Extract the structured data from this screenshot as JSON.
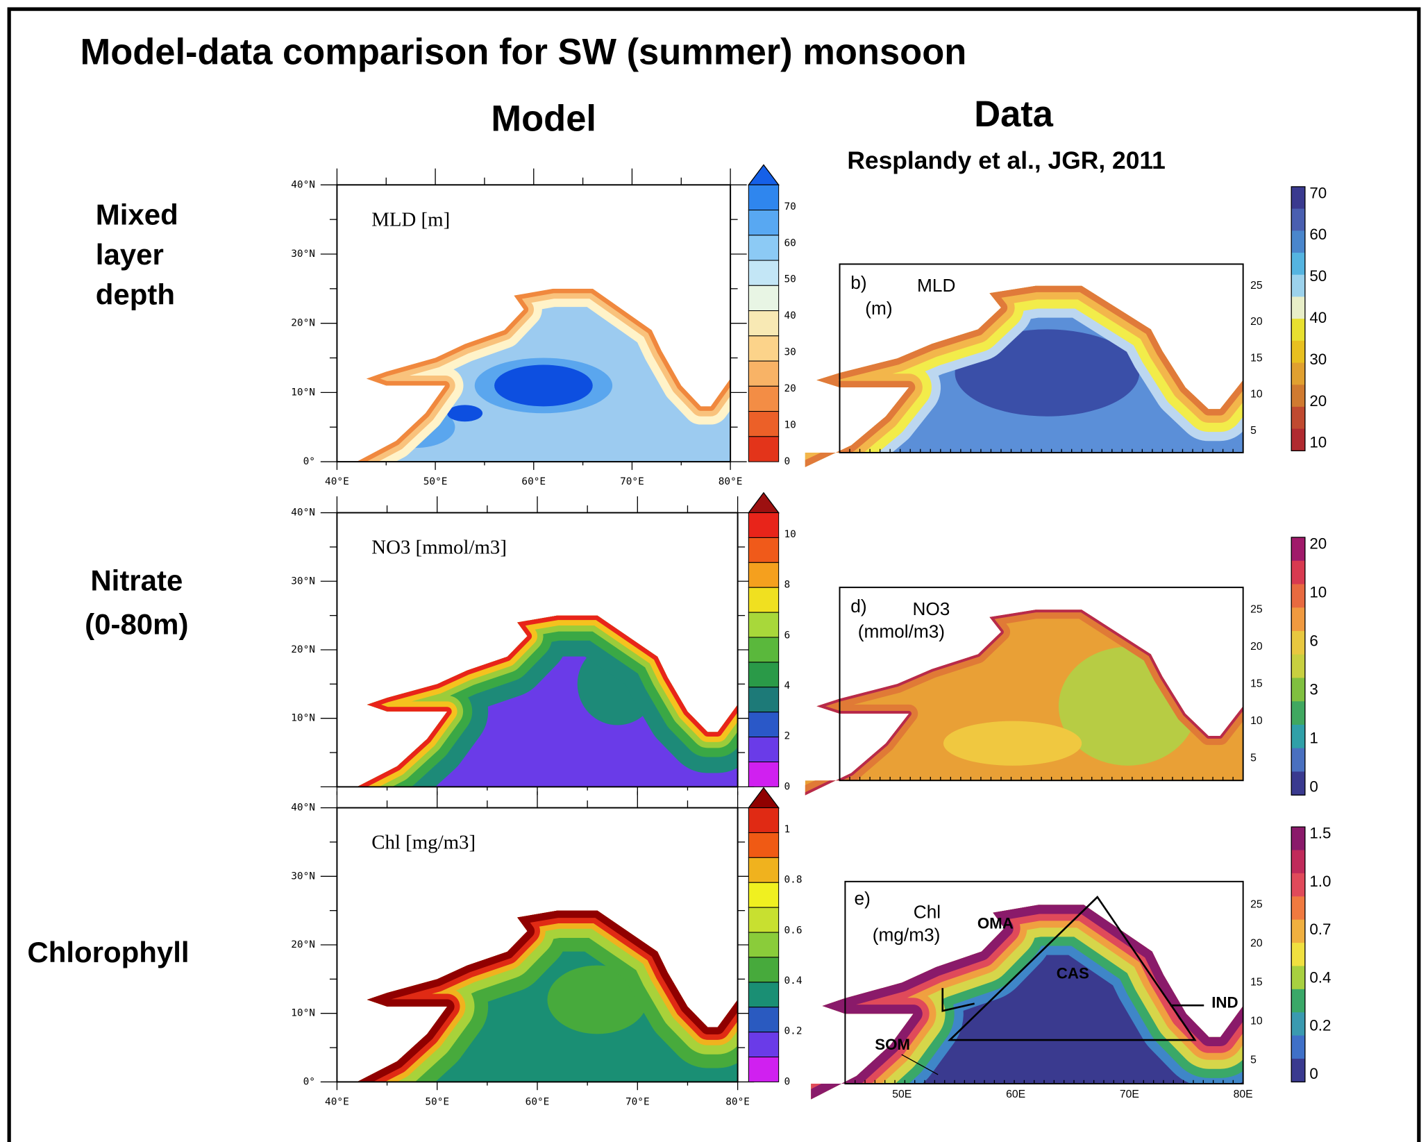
{
  "title": "Model-data comparison for SW (summer) monsoon",
  "headers": {
    "model": "Model",
    "data": "Data",
    "data_source": "Resplandy et al., JGR, 2011"
  },
  "rows": [
    {
      "label": [
        "Mixed",
        "layer",
        "depth"
      ],
      "model": {
        "title": "MLD [m]",
        "lat_ticks": [
          "40°N",
          "30°N",
          "20°N",
          "10°N",
          "0°"
        ],
        "lon_ticks": [
          "40°E",
          "50°E",
          "60°E",
          "70°E",
          "80°E"
        ],
        "colorbar": {
          "labels": [
            "70",
            "60",
            "50",
            "40",
            "30",
            "20",
            "10",
            "0"
          ],
          "colors": [
            "#1560e8",
            "#2f86ee",
            "#58a8f2",
            "#8ccaf5",
            "#c3e6f6",
            "#e8f5e4",
            "#f8e9b4",
            "#fcd38a",
            "#f8b366",
            "#f38d45",
            "#ec6028",
            "#e3341a"
          ]
        }
      },
      "data": {
        "tag": "b)",
        "name": "MLD",
        "unit": "(m)",
        "y_ticks": [
          "25",
          "20",
          "15",
          "10",
          "5"
        ],
        "colorbar": {
          "labels": [
            "70",
            "60",
            "50",
            "40",
            "30",
            "20",
            "10"
          ],
          "colors": [
            "#3a3a8f",
            "#4a5fb0",
            "#4a86cc",
            "#55b4e0",
            "#9cd2ec",
            "#e8eec8",
            "#e8e030",
            "#e8c020",
            "#e0a030",
            "#d07a30",
            "#c04a30",
            "#b02a30"
          ]
        }
      }
    },
    {
      "label": [
        "Nitrate",
        "(0-80m)"
      ],
      "model": {
        "title": "NO3 [mmol/m3]",
        "lat_ticks": [
          "40°N",
          "30°N",
          "20°N",
          "10°N"
        ],
        "colorbar": {
          "labels": [
            "10",
            "8",
            "6",
            "4",
            "2",
            "0"
          ],
          "colors": [
            "#9c1010",
            "#e8241a",
            "#f05a1a",
            "#f5a01e",
            "#f0e020",
            "#a8d83a",
            "#5ab83c",
            "#2a9a48",
            "#1d7a78",
            "#2a58c8",
            "#6a3be8",
            "#d020f0"
          ]
        }
      },
      "data": {
        "tag": "d)",
        "name": "NO3",
        "unit": "(mmol/m3)",
        "y_ticks": [
          "25",
          "20",
          "15",
          "10",
          "5"
        ],
        "colorbar": {
          "labels": [
            "20",
            "10",
            "6",
            "3",
            "1",
            "0"
          ],
          "colors": [
            "#a01a6a",
            "#d83a50",
            "#e86a40",
            "#f09a40",
            "#e8c840",
            "#c8d040",
            "#80c040",
            "#40a860",
            "#30a0a8",
            "#4a70c0",
            "#3a3a8f"
          ]
        }
      }
    },
    {
      "label": [
        "Chlorophyll"
      ],
      "model": {
        "title": "Chl [mg/m3]",
        "lat_ticks": [
          "40°N",
          "30°N",
          "20°N",
          "10°N",
          "0°"
        ],
        "lon_ticks": [
          "40°E",
          "50°E",
          "60°E",
          "70°E",
          "80°E"
        ],
        "colorbar": {
          "labels": [
            "1",
            "0.8",
            "0.6",
            "0.4",
            "0.2",
            "0"
          ],
          "colors": [
            "#900000",
            "#e02a14",
            "#f05a14",
            "#f0b21e",
            "#f0f020",
            "#c8e030",
            "#8acc3a",
            "#47aa3c",
            "#1a8f74",
            "#2a5ac0",
            "#6a3be8",
            "#d020f0"
          ]
        }
      },
      "data": {
        "tag": "e)",
        "name": "Chl",
        "unit": "(mg/m3)",
        "y_ticks": [
          "25",
          "20",
          "15",
          "10",
          "5"
        ],
        "x_ticks": [
          "50E",
          "60E",
          "70E",
          "80E"
        ],
        "regions": [
          "OMA",
          "CAS",
          "IND",
          "SOM"
        ],
        "colorbar": {
          "labels": [
            "1.5",
            "1.0",
            "0.7",
            "0.4",
            "0.2",
            "0"
          ],
          "colors": [
            "#8a1a6a",
            "#c02a5a",
            "#e04a5a",
            "#f07a40",
            "#f0b040",
            "#f0e040",
            "#a8d040",
            "#3aa868",
            "#3a9ab0",
            "#3f70c8",
            "#3a3a8f"
          ]
        }
      }
    }
  ]
}
